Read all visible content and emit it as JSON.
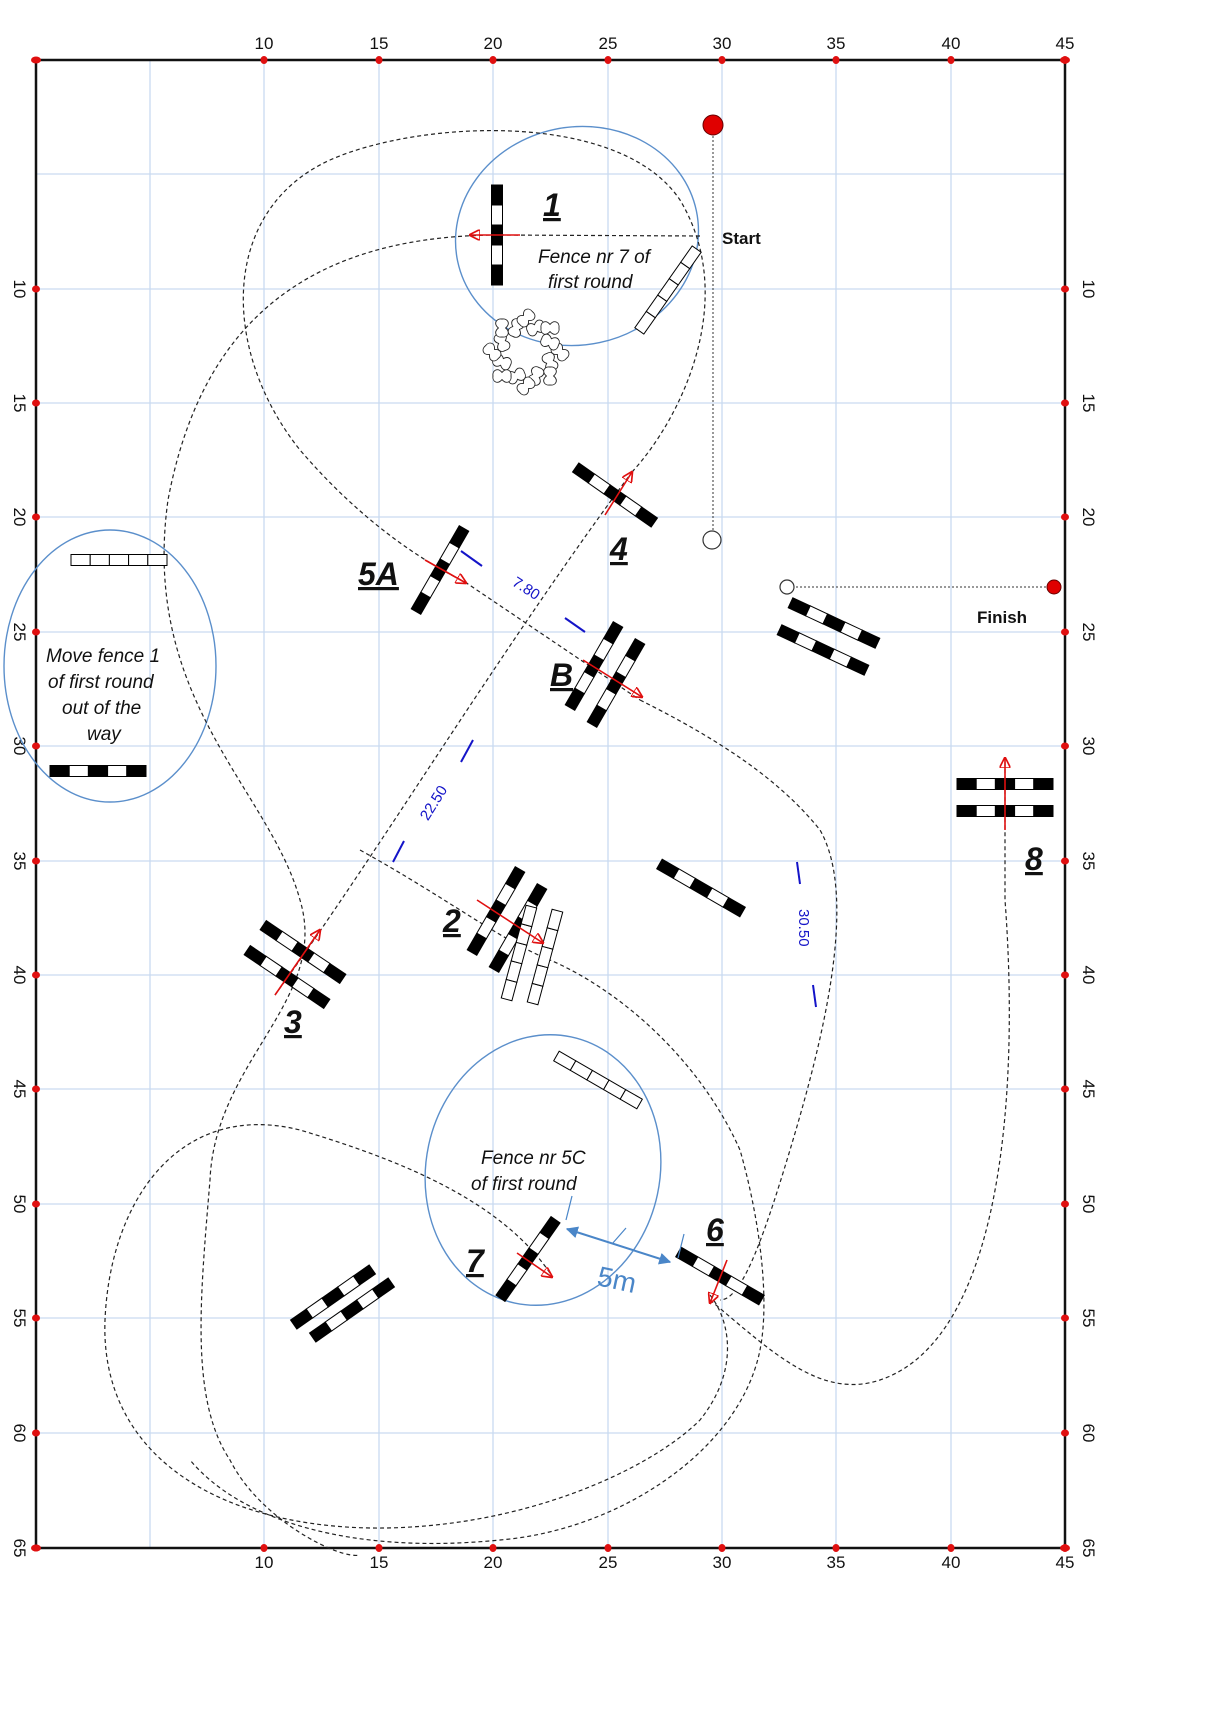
{
  "arena": {
    "x_ticks": [
      "10",
      "15",
      "20",
      "25",
      "30",
      "35",
      "40",
      "45"
    ],
    "y_ticks": [
      "10",
      "15",
      "20",
      "25",
      "30",
      "35",
      "40",
      "45",
      "50",
      "55",
      "60",
      "65"
    ]
  },
  "fences": {
    "f1": "1",
    "f2": "2",
    "f3": "3",
    "f4": "4",
    "f5a": "5A",
    "fb": "B",
    "f6": "6",
    "f7": "7",
    "f8": "8"
  },
  "labels": {
    "start": "Start",
    "finish": "Finish"
  },
  "notes": {
    "fence7_line1": "Fence nr 7 of",
    "fence7_line2": "first round",
    "move1_line1": "Move fence 1",
    "move1_line2": "of first round",
    "move1_line3": "out of the",
    "move1_line4": "way",
    "fence5c_line1": "Fence nr 5C",
    "fence5c_line2": "of  first round"
  },
  "distances": {
    "d1": "7.80",
    "d2": "22.50",
    "d3": "30.50",
    "d4": "5m"
  },
  "colors": {
    "grid": "#c9daf0",
    "circle": "#5b8fcb",
    "arrow": "#e01010",
    "distance": "#1414c8",
    "flag": "#e00000"
  }
}
